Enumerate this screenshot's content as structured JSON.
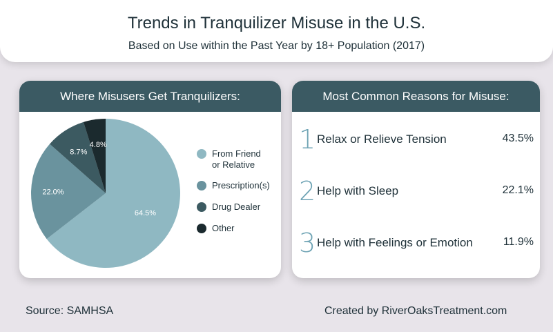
{
  "header": {
    "title": "Trends in Tranquilizer Misuse in the U.S.",
    "subtitle": "Based on Use within the Past Year by 18+ Population (2017)"
  },
  "chart_data": {
    "type": "pie",
    "title": "Where Misusers Get Tranquilizers:",
    "labels": [
      "From Friend or Relative",
      "Prescription(s)",
      "Drug Dealer",
      "Other"
    ],
    "legend_lines": [
      [
        "From Friend",
        "or Relative"
      ],
      [
        "Prescription(s)"
      ],
      [
        "Drug Dealer"
      ],
      [
        "Other"
      ]
    ],
    "values": [
      64.5,
      22.0,
      8.7,
      4.8
    ],
    "value_labels": [
      "64.5%",
      "22.0%",
      "8.7%",
      "4.8%"
    ],
    "colors": [
      "#8fb8c2",
      "#6a939e",
      "#3c5a61",
      "#1b2a2e"
    ],
    "legend_position": "right"
  },
  "reasons": {
    "title": "Most Common Reasons for Misuse:",
    "items": [
      {
        "rank": "1",
        "label": "Relax or Relieve Tension",
        "value": "43.5%"
      },
      {
        "rank": "2",
        "label": "Help with Sleep",
        "value": "22.1%"
      },
      {
        "rank": "3",
        "label": "Help with Feelings or Emotion",
        "value": "11.9%"
      }
    ]
  },
  "footer": {
    "source": "Source: SAMHSA",
    "credit": "Created by RiverOaksTreatment.com"
  }
}
